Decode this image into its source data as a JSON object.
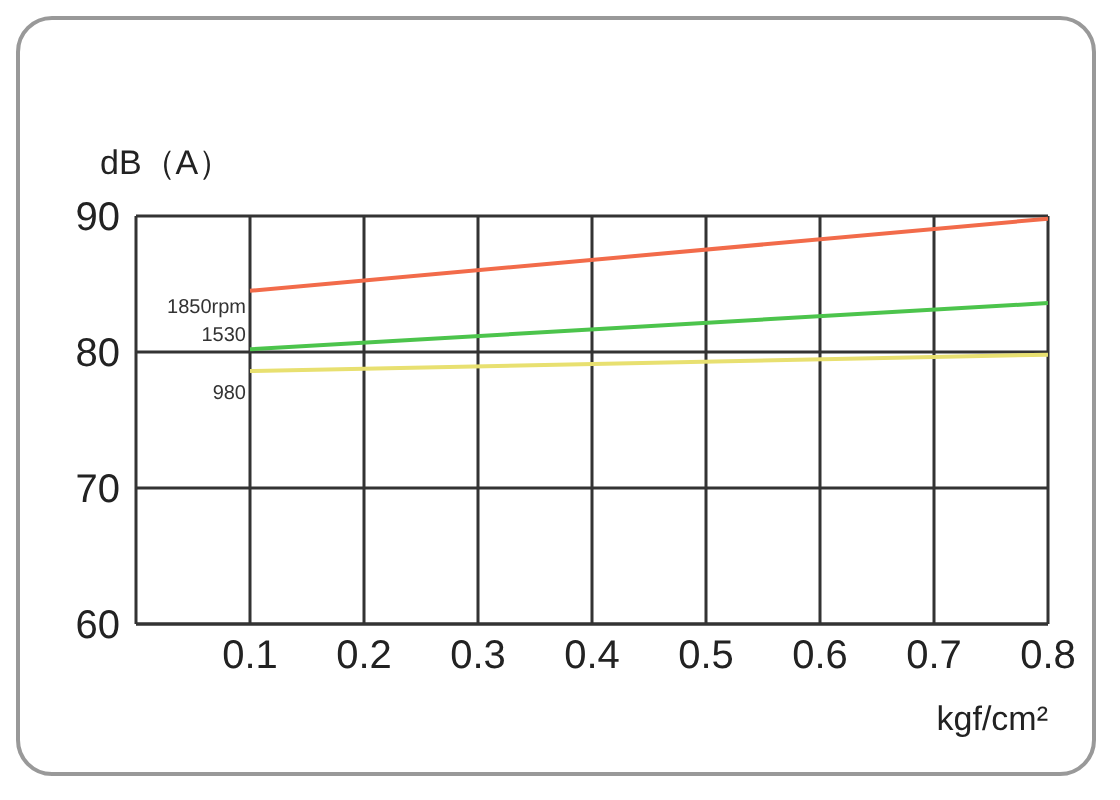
{
  "chart_data": {
    "type": "line",
    "ylabel": "dB（A）",
    "xlabel": "kgf/cm²",
    "x": [
      0.1,
      0.8
    ],
    "series": [
      {
        "name": "1850rpm",
        "color": "#f26b4a",
        "values": [
          84.5,
          89.8
        ]
      },
      {
        "name": "1530",
        "color": "#4cc44c",
        "values": [
          80.2,
          83.6
        ]
      },
      {
        "name": "980",
        "color": "#e8e070",
        "values": [
          78.6,
          79.8
        ]
      }
    ],
    "xlim": [
      0,
      0.8
    ],
    "xticks": [
      0.1,
      0.2,
      0.3,
      0.4,
      0.5,
      0.6,
      0.7,
      0.8
    ],
    "ylim": [
      60,
      90
    ],
    "yticks": [
      60,
      70,
      80,
      90
    ],
    "grid": true,
    "marker": "none",
    "line_style": "solid"
  }
}
